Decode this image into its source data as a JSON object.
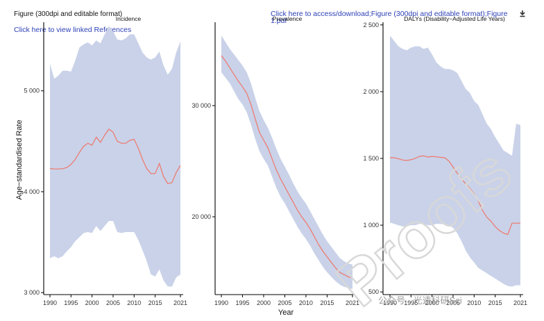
{
  "header": {
    "figure_label": "Figure (300dpi and editable format)",
    "references_link": "Click here to view linked References",
    "download_link": "Click here to access/download;Figure (300dpi and editable format);Figure",
    "download_link_line2": "1.pdf",
    "download_icon": "download-icon"
  },
  "colors": {
    "band": "#c9d2e8",
    "line": "#f0766a",
    "axis": "#000000",
    "link": "#2c3fb5"
  },
  "watermark": {
    "text": "公众号 · 光速科研Sci",
    "big_text": "Proofs"
  },
  "chart_data": [
    {
      "type": "line",
      "title": "Incidence",
      "ylabel": "Age−standardised Rate",
      "xlabel": "",
      "x": [
        1990,
        1991,
        1992,
        1993,
        1994,
        1995,
        1996,
        1997,
        1998,
        1999,
        2000,
        2001,
        2002,
        2003,
        2004,
        2005,
        2006,
        2007,
        2008,
        2009,
        2010,
        2011,
        2012,
        2013,
        2014,
        2015,
        2016,
        2017,
        2018,
        2019,
        2020,
        2021
      ],
      "xticks": [
        1990,
        1995,
        2000,
        2005,
        2010,
        2015,
        2021
      ],
      "xtick_labels": [
        "1990",
        "1995",
        "2000",
        "2005",
        "2010",
        "2015",
        "2021"
      ],
      "yticks": [
        3000,
        4000,
        5000
      ],
      "ytick_labels": [
        "3 000",
        "4 000",
        "5 000"
      ],
      "xlim": [
        1990,
        2021
      ],
      "ylim": [
        2980,
        5680
      ],
      "series": [
        {
          "name": "estimate",
          "values": [
            4230,
            4225,
            4225,
            4228,
            4240,
            4270,
            4320,
            4390,
            4450,
            4480,
            4460,
            4540,
            4490,
            4560,
            4620,
            4590,
            4500,
            4480,
            4480,
            4510,
            4520,
            4430,
            4320,
            4230,
            4180,
            4180,
            4280,
            4150,
            4080,
            4090,
            4190,
            4260
          ]
        },
        {
          "name": "upper",
          "values": [
            5270,
            5120,
            5150,
            5200,
            5200,
            5190,
            5300,
            5430,
            5460,
            5480,
            5450,
            5500,
            5470,
            5560,
            5640,
            5590,
            5510,
            5500,
            5520,
            5560,
            5560,
            5470,
            5380,
            5330,
            5310,
            5330,
            5390,
            5250,
            5160,
            5220,
            5380,
            5490
          ]
        },
        {
          "name": "lower",
          "values": [
            3340,
            3360,
            3340,
            3360,
            3410,
            3450,
            3510,
            3550,
            3590,
            3600,
            3590,
            3660,
            3610,
            3660,
            3710,
            3710,
            3600,
            3590,
            3600,
            3600,
            3600,
            3520,
            3420,
            3310,
            3180,
            3160,
            3230,
            3120,
            3060,
            3060,
            3150,
            3180
          ]
        }
      ]
    },
    {
      "type": "line",
      "title": "Prevalence",
      "ylabel": "",
      "xlabel": "Year",
      "x": [
        1990,
        1991,
        1992,
        1993,
        1994,
        1995,
        1996,
        1997,
        1998,
        1999,
        2000,
        2001,
        2002,
        2003,
        2004,
        2005,
        2006,
        2007,
        2008,
        2009,
        2010,
        2011,
        2012,
        2013,
        2014,
        2015,
        2016,
        2017,
        2018,
        2019,
        2020,
        2021
      ],
      "xticks": [
        1990,
        1995,
        2000,
        2005,
        2010,
        2015,
        2021
      ],
      "xtick_labels": [
        "1990",
        "1995",
        "2000",
        "2005",
        "2010",
        "2015",
        "2021"
      ],
      "yticks": [
        20000,
        30000
      ],
      "ytick_labels": [
        "20 000",
        "30 000"
      ],
      "xlim": [
        1990,
        2021
      ],
      "ylim": [
        13000,
        37500
      ],
      "series": [
        {
          "name": "estimate",
          "values": [
            34500,
            34000,
            33400,
            32800,
            32200,
            31700,
            31100,
            30100,
            28800,
            27600,
            26900,
            26200,
            25200,
            24200,
            23400,
            22700,
            22000,
            21300,
            20600,
            20000,
            19500,
            18900,
            18200,
            17500,
            16900,
            16400,
            15900,
            15400,
            15000,
            14800,
            14600,
            14500
          ]
        },
        {
          "name": "upper",
          "values": [
            36300,
            35700,
            35100,
            34600,
            34100,
            33600,
            33000,
            32000,
            30700,
            29500,
            28700,
            28000,
            27100,
            26100,
            25200,
            24500,
            23800,
            23000,
            22300,
            21700,
            21200,
            20500,
            19800,
            19100,
            18400,
            17800,
            17300,
            16800,
            16300,
            16000,
            15800,
            15700
          ]
        },
        {
          "name": "lower",
          "values": [
            33000,
            32500,
            32000,
            31300,
            30600,
            30100,
            29400,
            28300,
            27000,
            25900,
            25200,
            24600,
            23600,
            22600,
            21800,
            21200,
            20500,
            19800,
            19100,
            18500,
            18000,
            17400,
            16700,
            16100,
            15500,
            15000,
            14600,
            14200,
            13900,
            13700,
            13600,
            13500
          ]
        }
      ]
    },
    {
      "type": "line",
      "title": "DALYs (Disability−Adjusted Life Years)",
      "ylabel": "",
      "xlabel": "",
      "x": [
        1990,
        1991,
        1992,
        1993,
        1994,
        1995,
        1996,
        1997,
        1998,
        1999,
        2000,
        2001,
        2002,
        2003,
        2004,
        2005,
        2006,
        2007,
        2008,
        2009,
        2010,
        2011,
        2012,
        2013,
        2014,
        2015,
        2016,
        2017,
        2018,
        2019,
        2020,
        2021
      ],
      "xticks": [
        1990,
        1995,
        2000,
        2005,
        2010,
        2015,
        2021
      ],
      "xtick_labels": [
        "1990",
        "1995",
        "2000",
        "2005",
        "2010",
        "2015",
        "2021"
      ],
      "yticks": [
        500,
        1000,
        1500,
        2000,
        2500
      ],
      "ytick_labels": [
        "500",
        "1 000",
        "1 500",
        "2 000",
        "2 500"
      ],
      "xlim": [
        1990,
        2021
      ],
      "ylim": [
        480,
        2520
      ],
      "series": [
        {
          "name": "estimate",
          "values": [
            1505,
            1505,
            1498,
            1488,
            1485,
            1490,
            1500,
            1515,
            1520,
            1510,
            1515,
            1512,
            1508,
            1505,
            1480,
            1435,
            1390,
            1345,
            1310,
            1275,
            1235,
            1180,
            1110,
            1060,
            1030,
            990,
            960,
            940,
            930,
            1015,
            1015,
            1015
          ]
        },
        {
          "name": "upper",
          "values": [
            2420,
            2380,
            2340,
            2320,
            2310,
            2330,
            2340,
            2340,
            2320,
            2330,
            2280,
            2220,
            2190,
            2170,
            2170,
            2160,
            2140,
            2080,
            2020,
            1990,
            1930,
            1900,
            1830,
            1760,
            1720,
            1660,
            1610,
            1560,
            1540,
            1520,
            1760,
            1750
          ]
        },
        {
          "name": "lower",
          "values": [
            1020,
            1010,
            1000,
            990,
            990,
            1000,
            1000,
            1010,
            1010,
            1000,
            1000,
            1010,
            1010,
            1005,
            1000,
            980,
            940,
            880,
            810,
            760,
            720,
            680,
            660,
            640,
            620,
            600,
            580,
            560,
            545,
            540,
            550,
            550
          ]
        }
      ]
    }
  ]
}
